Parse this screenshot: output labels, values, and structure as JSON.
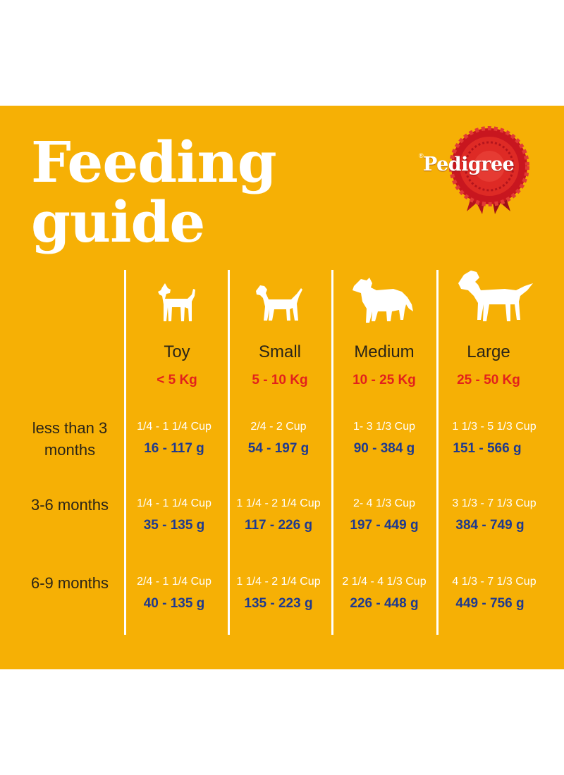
{
  "header": {
    "title_line1": "Feeding",
    "title_line2": "guide",
    "brand": "Pedigree",
    "brand_mark": "®"
  },
  "colors": {
    "background": "#f6b005",
    "title": "#ffffff",
    "weight_red": "#e2211c",
    "grams_blue": "#1f3a8f",
    "label_dark": "#2a2418"
  },
  "columns": [
    {
      "label": "Toy",
      "weight": "< 5 Kg",
      "icon": "toy-dog-icon"
    },
    {
      "label": "Small",
      "weight": "5 - 10 Kg",
      "icon": "small-dog-icon"
    },
    {
      "label": "Medium",
      "weight": "10 - 25 Kg",
      "icon": "medium-dog-icon"
    },
    {
      "label": "Large",
      "weight": "25 - 50 Kg",
      "icon": "large-dog-icon"
    }
  ],
  "rows": [
    {
      "label_line1": "less than 3",
      "label_line2": "months",
      "cells": [
        {
          "cup": "1/4 - 1 1/4 Cup",
          "grams": "16 - 117 g"
        },
        {
          "cup": "2/4 - 2  Cup",
          "grams": "54 - 197 g"
        },
        {
          "cup": "1- 3 1/3  Cup",
          "grams": "90 - 384 g"
        },
        {
          "cup": "1 1/3 - 5 1/3  Cup",
          "grams": "151 - 566 g"
        }
      ]
    },
    {
      "label_line1": "3-6 months",
      "label_line2": "",
      "cells": [
        {
          "cup": "1/4 - 1 1/4 Cup",
          "grams": "35 - 135 g"
        },
        {
          "cup": "1 1/4 - 2 1/4 Cup",
          "grams": "117 - 226 g"
        },
        {
          "cup": "2- 4 1/3 Cup",
          "grams": "197 - 449 g"
        },
        {
          "cup": "3 1/3 - 7 1/3 Cup",
          "grams": "384 - 749 g"
        }
      ]
    },
    {
      "label_line1": "6-9 months",
      "label_line2": "",
      "cells": [
        {
          "cup": "2/4 - 1 1/4 Cup",
          "grams": "40 - 135 g"
        },
        {
          "cup": "1 1/4 - 2 1/4 Cup",
          "grams": "135 - 223 g"
        },
        {
          "cup": "2 1/4 - 4 1/3 Cup",
          "grams": "226 - 448 g"
        },
        {
          "cup": "4 1/3 - 7 1/3 Cup",
          "grams": "449 - 756 g"
        }
      ]
    }
  ]
}
